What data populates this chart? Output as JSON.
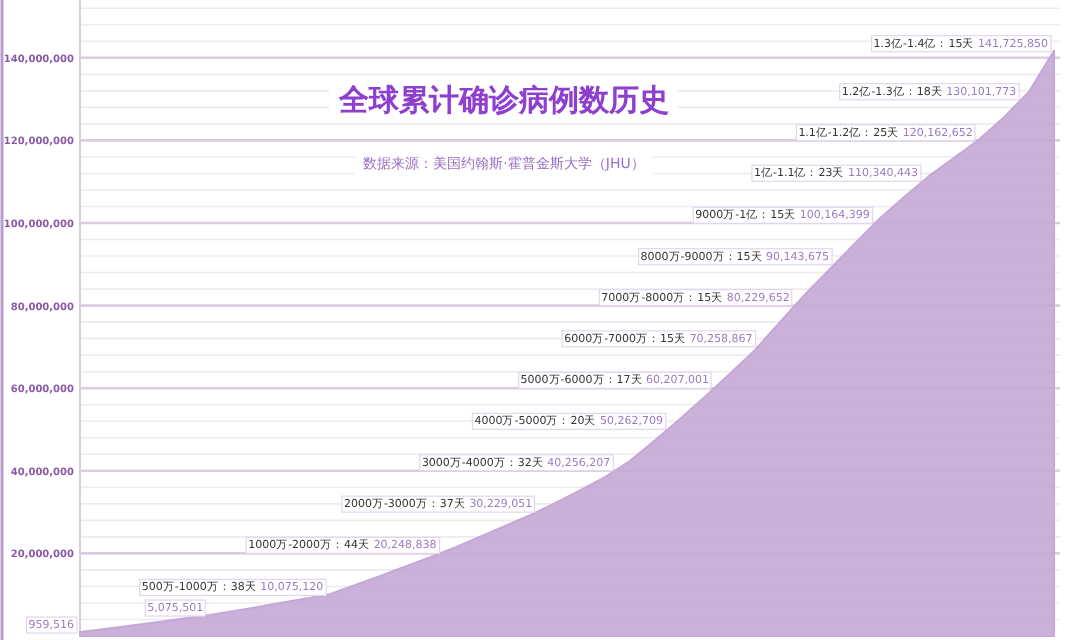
{
  "chart_data": {
    "type": "area",
    "title": "全球累计确诊病例数历史",
    "subtitle": "数据来源：美国约翰斯·霍普金斯大学（JHU）",
    "categories": [
      null,
      null,
      null,
      null,
      null,
      null,
      null,
      null,
      null,
      null,
      null,
      null,
      null,
      null,
      null,
      null,
      null,
      null,
      null,
      null,
      null,
      null,
      null,
      null,
      null,
      null,
      null,
      null,
      null,
      null,
      null,
      null,
      null,
      null,
      null,
      null,
      null,
      null,
      null,
      null
    ],
    "series": [
      {
        "color": "#c4a8d6",
        "values": [
          959516,
          1700000,
          2500000,
          3300000,
          4100000,
          4900000,
          5900000,
          6900000,
          8000000,
          9000000,
          10100000,
          12300000,
          14500000,
          16800000,
          19000000,
          21400000,
          24000000,
          26600000,
          29200000,
          32100000,
          35200000,
          38400000,
          42300000,
          47300000,
          52400000,
          57800000,
          63400000,
          69100000,
          75800000,
          82500000,
          88700000,
          94900000,
          101000000,
          106300000,
          111400000,
          115800000,
          120200000,
          125600000,
          131800000,
          141700000
        ]
      }
    ],
    "ylim": [
      0,
      154000000
    ],
    "yticks": [
      {
        "value": 4000000,
        "label": null
      },
      {
        "value": 8000000,
        "label": null
      },
      {
        "value": 12000000,
        "label": null
      },
      {
        "value": 16000000,
        "label": null
      },
      {
        "value": 20000000,
        "label": "20,000,000"
      },
      {
        "value": 24000000,
        "label": null
      },
      {
        "value": 28000000,
        "label": null
      },
      {
        "value": 32000000,
        "label": null
      },
      {
        "value": 36000000,
        "label": null
      },
      {
        "value": 40000000,
        "label": "40,000,000"
      },
      {
        "value": 44000000,
        "label": null
      },
      {
        "value": 48000000,
        "label": null
      },
      {
        "value": 52000000,
        "label": null
      },
      {
        "value": 56000000,
        "label": null
      },
      {
        "value": 60000000,
        "label": "60,000,000"
      },
      {
        "value": 64000000,
        "label": null
      },
      {
        "value": 68000000,
        "label": null
      },
      {
        "value": 72000000,
        "label": null
      },
      {
        "value": 76000000,
        "label": null
      },
      {
        "value": 80000000,
        "label": "80,000,000"
      },
      {
        "value": 84000000,
        "label": null
      },
      {
        "value": 88000000,
        "label": null
      },
      {
        "value": 92000000,
        "label": null
      },
      {
        "value": 96000000,
        "label": null
      },
      {
        "value": 100000000,
        "label": "100,000,000"
      },
      {
        "value": 104000000,
        "label": null
      },
      {
        "value": 108000000,
        "label": null
      },
      {
        "value": 112000000,
        "label": null
      },
      {
        "value": 116000000,
        "label": null
      },
      {
        "value": 120000000,
        "label": "120,000,000"
      },
      {
        "value": 124000000,
        "label": null
      },
      {
        "value": 128000000,
        "label": null
      },
      {
        "value": 132000000,
        "label": null
      },
      {
        "value": 136000000,
        "label": null
      },
      {
        "value": 140000000,
        "label": "140,000,000"
      },
      {
        "value": 144000000,
        "label": null
      },
      {
        "value": 148000000,
        "label": null
      },
      {
        "value": 152000000,
        "label": null
      }
    ],
    "grid": "y",
    "annotations": [
      "959,516",
      "5,075,501",
      "500万-1000万：38天 10,075,120",
      "1000万-2000万：44天 20,248,838",
      "2000万-3000万：37天 30,229,051",
      "3000万-4000万：32天 40,256,207",
      "4000万-5000万：20天 50,262,709",
      "5000万-6000万：17天 60,207,001",
      "6000万-7000万：15天 70,258,867",
      "7000万-8000万：15天 80,229,652",
      "8000万-9000万：15天 90,143,675",
      "9000万-1亿：15天 100,164,399",
      "1亿-1.1亿：23天 110,340,443",
      "1.1亿-1.2亿：25天 120,162,652",
      "1.2亿-1.3亿：18天 130,101,773",
      "1.3亿-1.4亿：15天 141,725,850"
    ]
  }
}
